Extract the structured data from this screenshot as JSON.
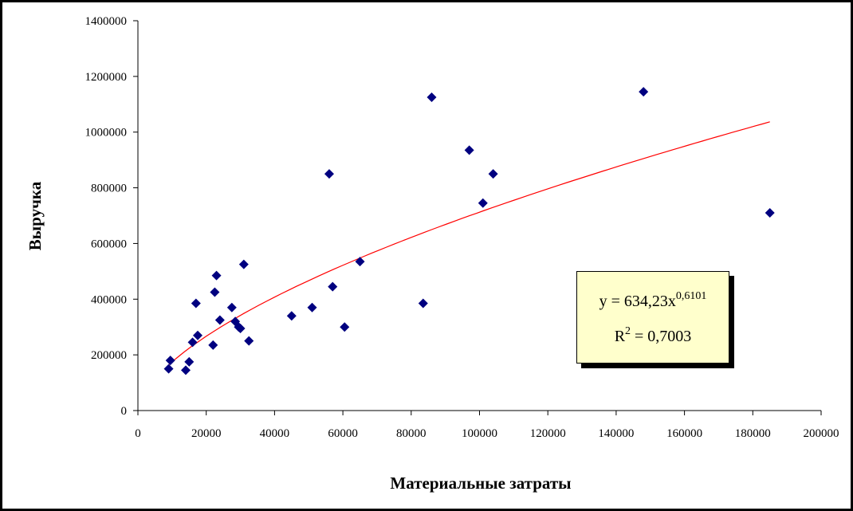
{
  "chart_data": {
    "type": "scatter",
    "xlabel": "Материальные затраты",
    "ylabel": "Выручка",
    "xlim": [
      0,
      200000
    ],
    "ylim": [
      0,
      1400000
    ],
    "x_ticks": [
      "0",
      "20000",
      "40000",
      "60000",
      "80000",
      "100000",
      "120000",
      "140000",
      "160000",
      "180000",
      "200000"
    ],
    "y_ticks": [
      "0",
      "200000",
      "400000",
      "600000",
      "800000",
      "1000000",
      "1200000",
      "1400000"
    ],
    "x_tick_values": [
      0,
      20000,
      40000,
      60000,
      80000,
      100000,
      120000,
      140000,
      160000,
      180000,
      200000
    ],
    "y_tick_values": [
      0,
      200000,
      400000,
      600000,
      800000,
      1000000,
      1200000,
      1400000
    ],
    "points": [
      {
        "x": 9000,
        "y": 150000
      },
      {
        "x": 9500,
        "y": 180000
      },
      {
        "x": 14000,
        "y": 145000
      },
      {
        "x": 15000,
        "y": 175000
      },
      {
        "x": 16000,
        "y": 245000
      },
      {
        "x": 17000,
        "y": 385000
      },
      {
        "x": 17500,
        "y": 270000
      },
      {
        "x": 22000,
        "y": 235000
      },
      {
        "x": 22500,
        "y": 425000
      },
      {
        "x": 23000,
        "y": 485000
      },
      {
        "x": 24000,
        "y": 325000
      },
      {
        "x": 27500,
        "y": 370000
      },
      {
        "x": 28500,
        "y": 320000
      },
      {
        "x": 29500,
        "y": 300000
      },
      {
        "x": 30000,
        "y": 295000
      },
      {
        "x": 31000,
        "y": 525000
      },
      {
        "x": 32500,
        "y": 250000
      },
      {
        "x": 45000,
        "y": 340000
      },
      {
        "x": 51000,
        "y": 370000
      },
      {
        "x": 56000,
        "y": 850000
      },
      {
        "x": 57000,
        "y": 445000
      },
      {
        "x": 60500,
        "y": 300000
      },
      {
        "x": 65000,
        "y": 535000
      },
      {
        "x": 83500,
        "y": 385000
      },
      {
        "x": 86000,
        "y": 1125000
      },
      {
        "x": 97000,
        "y": 935000
      },
      {
        "x": 101000,
        "y": 745000
      },
      {
        "x": 104000,
        "y": 850000
      },
      {
        "x": 148000,
        "y": 1145000
      },
      {
        "x": 185000,
        "y": 710000
      }
    ],
    "trendline": {
      "type": "power",
      "coefficient": 634.23,
      "exponent": 0.6101,
      "x_range": [
        9000,
        185000
      ],
      "equation_base": "y = 634,23x",
      "equation_exponent": "0,6101",
      "r2_base": "R",
      "r2_exponent": "2",
      "r2_value": " = 0,7003"
    },
    "colors": {
      "marker": "#000080",
      "trendline": "#ff0000",
      "label_box": "#ffffcc"
    },
    "grid": false,
    "legend": "none"
  }
}
